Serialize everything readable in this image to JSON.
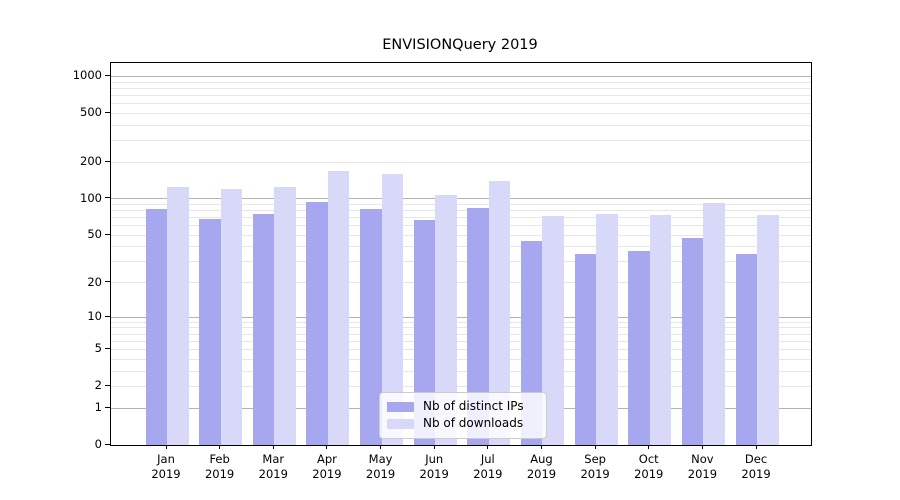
{
  "chart_data": {
    "type": "bar",
    "title": "ENVISIONQuery 2019",
    "categories": [
      "Jan",
      "Feb",
      "Mar",
      "Apr",
      "May",
      "Jun",
      "Jul",
      "Aug",
      "Sep",
      "Oct",
      "Nov",
      "Dec"
    ],
    "category_year": "2019",
    "series": [
      {
        "name": "Nb of distinct IPs",
        "color": "#a7a7f0",
        "values": [
          83,
          68,
          75,
          94,
          83,
          67,
          84,
          45,
          35,
          37,
          47,
          35
        ]
      },
      {
        "name": "Nb of downloads",
        "color": "#d8d8f8",
        "values": [
          125,
          120,
          126,
          168,
          160,
          108,
          140,
          72,
          75,
          74,
          92,
          74
        ]
      }
    ],
    "xlabel": "",
    "ylabel": "",
    "yscale": "symlog",
    "yticks": [
      0,
      1,
      2,
      5,
      10,
      20,
      50,
      100,
      200,
      500,
      1000
    ],
    "ylim": [
      0,
      1286
    ],
    "grid": true,
    "grid_major_color": "#b3b3b3",
    "grid_minor_color": "#e7e7e7",
    "legend_position": "lower center",
    "legend_items": [
      "Nb of distinct IPs",
      "Nb of downloads"
    ]
  }
}
